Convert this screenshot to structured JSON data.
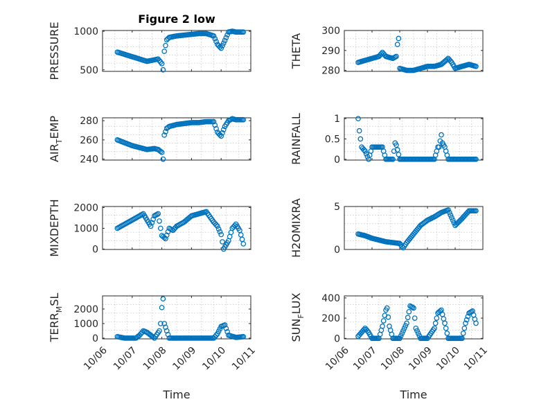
{
  "chart_data": [
    {
      "type": "scatter",
      "title": "Figure 2 low",
      "ylabel_parts": [
        "PRESSURE"
      ],
      "xlabel": "",
      "ylim": [
        480,
        1010
      ],
      "yticks": [
        500,
        1000
      ],
      "x": [
        "10/06 12:00",
        "10/06 18:00",
        "10/07 00:00",
        "10/07 06:00",
        "10/07 12:00",
        "10/07 18:00",
        "10/07 21:00",
        "10/08 00:00",
        "10/08 01:00",
        "10/08 02:00",
        "10/08 04:00",
        "10/08 06:00",
        "10/08 12:00",
        "10/08 18:00",
        "10/09 00:00",
        "10/09 06:00",
        "10/09 12:00",
        "10/09 18:00",
        "10/09 21:00",
        "10/10 00:00",
        "10/10 03:00",
        "10/10 06:00",
        "10/10 09:00",
        "10/10 12:00",
        "10/10 18:00"
      ],
      "y": [
        730,
        700,
        670,
        640,
        610,
        630,
        640,
        580,
        500,
        740,
        890,
        920,
        940,
        950,
        960,
        970,
        970,
        940,
        830,
        780,
        880,
        990,
        1000,
        990,
        990
      ]
    },
    {
      "type": "scatter",
      "title": "",
      "ylabel_parts": [
        "THETA"
      ],
      "xlabel": "",
      "ylim": [
        279.5,
        300
      ],
      "yticks": [
        280,
        290,
        300
      ],
      "x": [
        "10/06 12:00",
        "10/06 18:00",
        "10/07 00:00",
        "10/07 06:00",
        "10/07 09:00",
        "10/07 12:00",
        "10/07 18:00",
        "10/07 21:00",
        "10/07 22:00",
        "10/07 23:00",
        "10/08 00:00",
        "10/08 06:00",
        "10/08 12:00",
        "10/08 18:00",
        "10/09 00:00",
        "10/09 06:00",
        "10/09 12:00",
        "10/09 18:00",
        "10/09 21:00",
        "10/10 00:00",
        "10/10 06:00",
        "10/10 12:00",
        "10/10 18:00"
      ],
      "y": [
        284,
        285,
        286,
        287,
        289,
        287,
        286,
        287,
        293,
        296,
        281,
        280,
        280,
        281,
        282,
        282,
        283,
        286,
        284,
        281,
        282,
        283,
        282
      ]
    },
    {
      "type": "scatter",
      "title": "",
      "ylabel_parts": [
        "AIR",
        "T",
        "EMP"
      ],
      "xlabel": "",
      "ylim": [
        239,
        283
      ],
      "yticks": [
        240,
        260,
        280
      ],
      "x": [
        "10/06 12:00",
        "10/06 18:00",
        "10/07 00:00",
        "10/07 06:00",
        "10/07 12:00",
        "10/07 18:00",
        "10/07 21:00",
        "10/08 00:00",
        "10/08 01:00",
        "10/08 02:00",
        "10/08 04:00",
        "10/08 06:00",
        "10/08 12:00",
        "10/08 18:00",
        "10/09 00:00",
        "10/09 06:00",
        "10/09 12:00",
        "10/09 18:00",
        "10/09 21:00",
        "10/10 00:00",
        "10/10 03:00",
        "10/10 06:00",
        "10/10 09:00",
        "10/10 12:00",
        "10/10 18:00"
      ],
      "y": [
        260,
        257,
        254,
        252,
        250,
        251,
        250,
        247,
        240,
        265,
        272,
        274,
        276,
        277,
        278,
        278,
        279,
        279,
        268,
        264,
        274,
        280,
        282,
        281,
        281
      ]
    },
    {
      "type": "scatter",
      "title": "",
      "ylabel_parts": [
        "RAINFALL"
      ],
      "xlabel": "",
      "ylim": [
        -0.02,
        1.02
      ],
      "yticks": [
        0,
        0.5,
        1
      ],
      "x": [
        "10/06 12:00",
        "10/06 13:00",
        "10/06 15:00",
        "10/06 18:00",
        "10/06 21:00",
        "10/07 00:00",
        "10/07 03:00",
        "10/07 06:00",
        "10/07 09:00",
        "10/07 12:00",
        "10/07 18:00",
        "10/07 20:00",
        "10/07 21:00",
        "10/08 00:00",
        "10/08 06:00",
        "10/08 12:00",
        "10/08 18:00",
        "10/09 00:00",
        "10/09 06:00",
        "10/09 09:00",
        "10/09 10:00",
        "10/09 12:00",
        "10/09 13:00",
        "10/09 15:00",
        "10/09 18:00",
        "10/10 00:00",
        "10/10 06:00",
        "10/10 12:00",
        "10/10 18:00"
      ],
      "y": [
        1.0,
        0.7,
        0.3,
        0.2,
        0.0,
        0.3,
        0.3,
        0.3,
        0.3,
        0.0,
        0.0,
        0.4,
        0.35,
        0.0,
        0.0,
        0.0,
        0.0,
        0.0,
        0.0,
        0.3,
        0.3,
        0.6,
        0.4,
        0.3,
        0.0,
        0.0,
        0.0,
        0.0,
        0.0
      ]
    },
    {
      "type": "scatter",
      "title": "",
      "ylabel_parts": [
        "MIXDEPTH"
      ],
      "xlabel": "",
      "ylim": [
        -20,
        2050
      ],
      "yticks": [
        0,
        1000,
        2000
      ],
      "x": [
        "10/06 12:00",
        "10/06 18:00",
        "10/07 00:00",
        "10/07 06:00",
        "10/07 09:00",
        "10/07 12:00",
        "10/07 15:00",
        "10/07 18:00",
        "10/07 21:00",
        "10/08 00:00",
        "10/08 03:00",
        "10/08 06:00",
        "10/08 09:00",
        "10/08 12:00",
        "10/08 18:00",
        "10/09 00:00",
        "10/09 06:00",
        "10/09 12:00",
        "10/09 18:00",
        "10/09 21:00",
        "10/10 00:00",
        "10/10 02:00",
        "10/10 04:00",
        "10/10 06:00",
        "10/10 09:00",
        "10/10 12:00",
        "10/10 15:00",
        "10/10 18:00"
      ],
      "y": [
        1000,
        1200,
        1400,
        1600,
        1700,
        1400,
        1100,
        1600,
        1700,
        650,
        500,
        1000,
        900,
        1100,
        1300,
        1600,
        1700,
        1800,
        1300,
        1100,
        700,
        0,
        200,
        400,
        1000,
        1200,
        900,
        250
      ]
    },
    {
      "type": "scatter",
      "title": "",
      "ylabel_parts": [
        "H2OMIXRA"
      ],
      "xlabel": "",
      "ylim": [
        0,
        5
      ],
      "yticks": [
        0,
        5
      ],
      "x": [
        "10/06 12:00",
        "10/06 18:00",
        "10/07 00:00",
        "10/07 06:00",
        "10/07 12:00",
        "10/07 18:00",
        "10/08 00:00",
        "10/08 03:00",
        "10/08 06:00",
        "10/08 12:00",
        "10/08 18:00",
        "10/09 00:00",
        "10/09 06:00",
        "10/09 12:00",
        "10/09 18:00",
        "10/10 00:00",
        "10/10 06:00",
        "10/10 12:00",
        "10/10 18:00"
      ],
      "y": [
        1.8,
        1.6,
        1.3,
        1.1,
        0.9,
        0.8,
        0.7,
        0.2,
        0.8,
        1.8,
        2.8,
        3.4,
        3.8,
        4.3,
        4.6,
        2.8,
        3.6,
        4.5,
        4.5
      ]
    },
    {
      "type": "scatter",
      "title": "",
      "ylabel_parts": [
        "TERR",
        "M",
        "SL"
      ],
      "xlabel": "Time",
      "ylim": [
        -50,
        2900
      ],
      "yticks": [
        0,
        1000,
        2000
      ],
      "xticks": [
        "10/06",
        "10/07",
        "10/08",
        "10/09",
        "10/10",
        "10/11"
      ],
      "x": [
        "10/06 12:00",
        "10/06 18:00",
        "10/07 00:00",
        "10/07 03:00",
        "10/07 06:00",
        "10/07 09:00",
        "10/07 12:00",
        "10/07 18:00",
        "10/07 22:00",
        "10/07 23:00",
        "10/08 00:00",
        "10/08 01:00",
        "10/08 02:00",
        "10/08 06:00",
        "10/08 12:00",
        "10/08 18:00",
        "10/09 00:00",
        "10/09 06:00",
        "10/09 12:00",
        "10/09 18:00",
        "10/09 21:00",
        "10/10 00:00",
        "10/10 03:00",
        "10/10 06:00",
        "10/10 12:00",
        "10/10 18:00"
      ],
      "y": [
        100,
        0,
        0,
        0,
        200,
        500,
        400,
        0,
        500,
        1000,
        2100,
        2700,
        1000,
        0,
        0,
        0,
        0,
        0,
        0,
        0,
        300,
        800,
        900,
        200,
        50,
        100
      ]
    },
    {
      "type": "scatter",
      "title": "",
      "ylabel_parts": [
        "SUN",
        "F",
        "LUX"
      ],
      "xlabel": "Time",
      "ylim": [
        -5,
        420
      ],
      "yticks": [
        0,
        200,
        400
      ],
      "xticks": [
        "10/06",
        "10/07",
        "10/08",
        "10/09",
        "10/10",
        "10/11"
      ],
      "x": [
        "10/06 12:00",
        "10/06 15:00",
        "10/06 18:00",
        "10/06 21:00",
        "10/07 00:00",
        "10/07 06:00",
        "10/07 09:00",
        "10/07 12:00",
        "10/07 13:00",
        "10/07 15:00",
        "10/07 18:00",
        "10/08 00:00",
        "10/08 06:00",
        "10/08 09:00",
        "10/08 12:00",
        "10/08 14:00",
        "10/08 18:00",
        "10/09 00:00",
        "10/09 06:00",
        "10/09 09:00",
        "10/09 12:00",
        "10/09 15:00",
        "10/09 18:00",
        "10/10 00:00",
        "10/10 06:00",
        "10/10 09:00",
        "10/10 12:00",
        "10/10 15:00",
        "10/10 18:00"
      ],
      "y": [
        20,
        60,
        100,
        60,
        0,
        0,
        120,
        280,
        300,
        120,
        0,
        0,
        150,
        320,
        300,
        100,
        0,
        0,
        100,
        250,
        280,
        150,
        0,
        0,
        0,
        150,
        250,
        270,
        150
      ]
    }
  ],
  "colors": {
    "marker": "#0072BD",
    "frame": "#262626",
    "grid": "#b8b8b8"
  }
}
